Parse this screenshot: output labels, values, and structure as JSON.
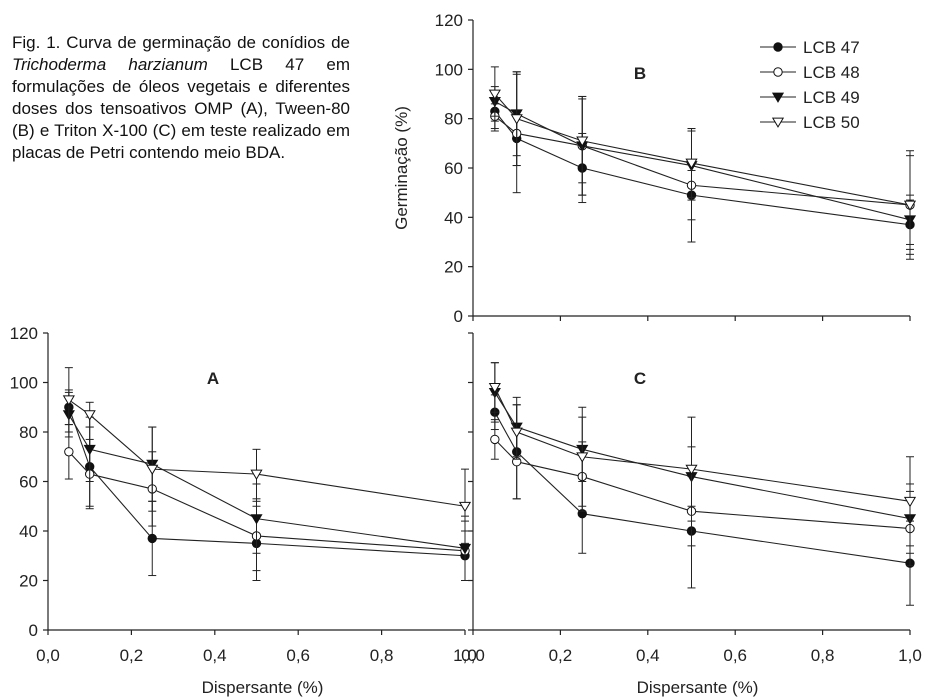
{
  "caption": {
    "part1": "Fig. 1. Curva de germinação de conídios de ",
    "species": "Trichoderma harzianum",
    "part2": " LCB 47 em formulações de óleos vegetais e diferentes doses dos tensoativos OMP (A), Tween-80 (B) e Triton X-100 (C) em teste realizado em placas de Petri contendo meio BDA."
  },
  "chart_data": [
    {
      "id": "B",
      "type": "line",
      "panel_label": "B",
      "ylabel": "Germinação (%)",
      "xlabel": "",
      "ylim": [
        0,
        120
      ],
      "yticks": [
        "0",
        "20",
        "40",
        "60",
        "80",
        "100",
        "120"
      ],
      "xlim": [
        0,
        1.0
      ],
      "xticks": [],
      "legend": "top-right",
      "x": [
        0.05,
        0.1,
        0.25,
        0.5,
        1.0
      ],
      "series": [
        {
          "name": "LCB 47",
          "marker": "circle-filled",
          "values": [
            83,
            72,
            60,
            49,
            37
          ],
          "err": [
            8,
            11,
            14,
            10,
            10
          ]
        },
        {
          "name": "LCB 48",
          "marker": "circle-open",
          "values": [
            81,
            74,
            69,
            53,
            45
          ],
          "err": [
            5,
            24,
            20,
            23,
            22
          ]
        },
        {
          "name": "LCB 49",
          "marker": "triangle-down-filled",
          "values": [
            87,
            82,
            69,
            61,
            39
          ],
          "err": [
            6,
            17,
            20,
            14,
            10
          ]
        },
        {
          "name": "LCB 50",
          "marker": "triangle-down-open",
          "values": [
            90,
            80,
            71,
            62,
            45
          ],
          "err": [
            11,
            19,
            17,
            14,
            20
          ]
        }
      ]
    },
    {
      "id": "A",
      "type": "line",
      "panel_label": "A",
      "ylabel": "",
      "xlabel": "Dispersante (%)",
      "ylim": [
        0,
        120
      ],
      "yticks": [
        "0",
        "20",
        "40",
        "60",
        "80",
        "100",
        "120"
      ],
      "xlim": [
        0,
        1.0
      ],
      "xticks": [
        "0,0",
        "0,2",
        "0,4",
        "0,6",
        "0,8",
        "1,0"
      ],
      "x": [
        0.05,
        0.1,
        0.25,
        0.5,
        1.0
      ],
      "series": [
        {
          "name": "LCB 47",
          "marker": "circle-filled",
          "values": [
            90,
            66,
            37,
            35,
            30
          ],
          "err": [
            7,
            16,
            15,
            15,
            10
          ]
        },
        {
          "name": "LCB 48",
          "marker": "circle-open",
          "values": [
            72,
            63,
            57,
            38,
            32
          ],
          "err": [
            11,
            14,
            15,
            14,
            12
          ]
        },
        {
          "name": "LCB 49",
          "marker": "triangle-down-filled",
          "values": [
            87,
            73,
            67,
            45,
            33
          ],
          "err": [
            9,
            13,
            15,
            14,
            13
          ]
        },
        {
          "name": "LCB 50",
          "marker": "triangle-down-open",
          "values": [
            93,
            87,
            65,
            63,
            50
          ],
          "err": [
            13,
            5,
            17,
            10,
            15
          ]
        }
      ]
    },
    {
      "id": "C",
      "type": "line",
      "panel_label": "C",
      "ylabel": "",
      "xlabel": "Dispersante (%)",
      "ylim": [
        0,
        120
      ],
      "yticks": [],
      "xlim": [
        0,
        1.0
      ],
      "xticks": [
        "0,0",
        "0,2",
        "0,4",
        "0,6",
        "0,8",
        "1,0"
      ],
      "x": [
        0.05,
        0.1,
        0.25,
        0.5,
        1.0
      ],
      "series": [
        {
          "name": "LCB 47",
          "marker": "circle-filled",
          "values": [
            88,
            72,
            47,
            40,
            27
          ],
          "err": [
            7,
            19,
            16,
            23,
            17
          ]
        },
        {
          "name": "LCB 48",
          "marker": "circle-open",
          "values": [
            77,
            68,
            62,
            48,
            41
          ],
          "err": [
            8,
            15,
            14,
            14,
            15
          ]
        },
        {
          "name": "LCB 49",
          "marker": "triangle-down-filled",
          "values": [
            96,
            82,
            73,
            62,
            45
          ],
          "err": [
            12,
            12,
            13,
            12,
            14
          ]
        },
        {
          "name": "LCB 50",
          "marker": "triangle-down-open",
          "values": [
            98,
            80,
            70,
            65,
            52
          ],
          "err": [
            10,
            11,
            20,
            21,
            18
          ]
        }
      ]
    }
  ]
}
